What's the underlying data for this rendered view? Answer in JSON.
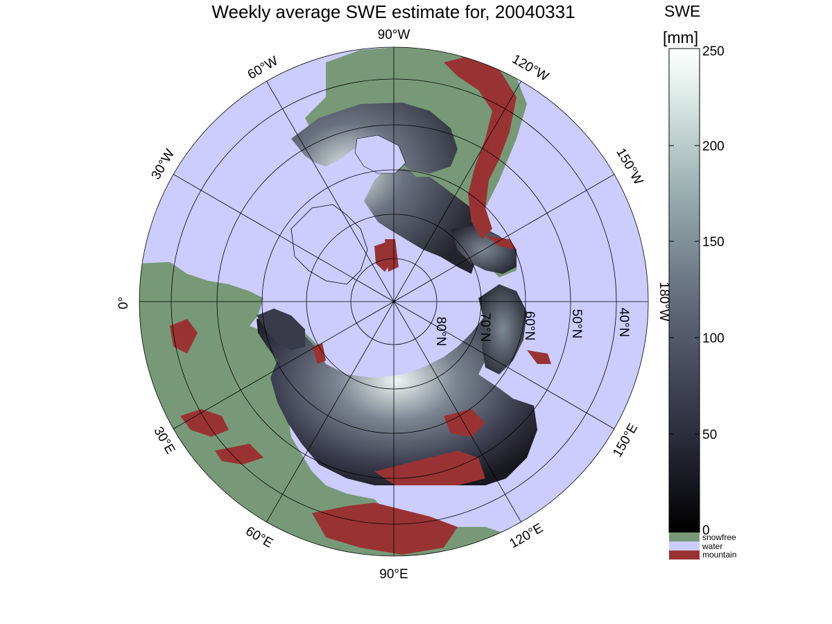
{
  "title": "Weekly average SWE estimate for, 20040331",
  "map": {
    "projection": "north-polar-stereographic",
    "longitude_labels": {
      "lon_90W": "90°W",
      "lon_60W": "60°W",
      "lon_120W": "120°W",
      "lon_30W": "30°W",
      "lon_150W": "150°W",
      "lon_0": "0°",
      "lon_180W": "180°W",
      "lon_30E": "30°E",
      "lon_150E": "150°E",
      "lon_60E": "60°E",
      "lon_120E": "120°E",
      "lon_90E": "90°E"
    },
    "latitude_labels": {
      "lat_80N": "80°N",
      "lat_70N": "70°N",
      "lat_60N": "60°N",
      "lat_50N": "50°N",
      "lat_40N": "40°N"
    },
    "colors": {
      "water": "#ccccff",
      "snowfree": "#779977",
      "mountain": "#993333",
      "snow_low": "#222230",
      "snow_high": "#f4fbf8"
    }
  },
  "colorbar": {
    "title_line1": "SWE",
    "title_line2": "[mm]",
    "ticks": [
      "250",
      "200",
      "150",
      "100",
      "50",
      "0"
    ],
    "range": [
      0,
      250
    ],
    "categories": [
      {
        "label": "snowfree",
        "color": "#779977"
      },
      {
        "label": "water",
        "color": "#ccccff"
      },
      {
        "label": "mountain",
        "color": "#993333"
      }
    ]
  }
}
